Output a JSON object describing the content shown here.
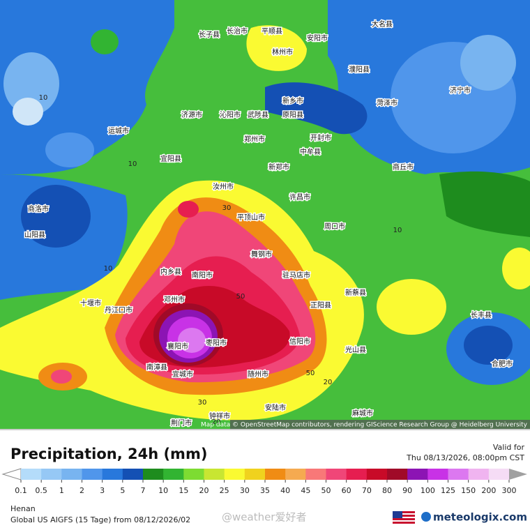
{
  "map": {
    "places": [
      "长子县",
      "长治市",
      "平顺县",
      "安阳市",
      "林州市",
      "大名县",
      "濮阳县",
      "新乡市",
      "济源市",
      "沁阳市",
      "武陟县",
      "原阳县",
      "菏泽市",
      "济宁市",
      "运城市",
      "宜阳县",
      "郑州市",
      "开封市",
      "中牟县",
      "新郑市",
      "商丘市",
      "汝州市",
      "许昌市",
      "商洛市",
      "平顶山市",
      "周口市",
      "山阳县",
      "舞钢市",
      "内乡县",
      "南阳市",
      "驻马店市",
      "新蔡县",
      "十堰市",
      "邓州市",
      "丹江口市",
      "正阳县",
      "长丰县",
      "枣阳市",
      "信阳市",
      "光山县",
      "襄阳市",
      "合肥市",
      "南漳县",
      "宜城市",
      "随州市",
      "安陆市",
      "麻城市",
      "钟祥市",
      "荆门市"
    ],
    "contour_labels": [
      10,
      10,
      10,
      10,
      30,
      30,
      50,
      50,
      20,
      20
    ],
    "attribution": "Map data © OpenStreetMap contributors, rendering GIScience Research Group @ Heidelberg University"
  },
  "legend": {
    "title": "Precipitation, 24h (mm)",
    "valid_label": "Valid for",
    "valid_time": "Thu 08/13/2026, 08:00pm CST",
    "scale": {
      "ticks": [
        0.1,
        0.5,
        1,
        2,
        3,
        5,
        7,
        10,
        15,
        20,
        25,
        30,
        35,
        40,
        45,
        50,
        60,
        70,
        80,
        90,
        100,
        125,
        150,
        200,
        300
      ],
      "colors": [
        "#b4dcfa",
        "#96c8f5",
        "#78b4f0",
        "#5096eb",
        "#2878dc",
        "#1450b4",
        "#1e8c1e",
        "#32b432",
        "#7ddc32",
        "#c8e632",
        "#fafa32",
        "#f0d21e",
        "#f08c14",
        "#f5aa50",
        "#f87878",
        "#f04678",
        "#e61e50",
        "#c80a28",
        "#a00a28",
        "#8c14b4",
        "#c832e6",
        "#dc78f0",
        "#f0b4f0",
        "#f5dcf5"
      ],
      "below_color": "#ffffff",
      "above_color": "#a0a0a0"
    }
  },
  "footer": {
    "region": "Henan",
    "model": "Global US AIGFS (15 Tage) from 08/12/2026/02",
    "watermark": "@weather爱好者",
    "logo": "meteologix.com"
  }
}
